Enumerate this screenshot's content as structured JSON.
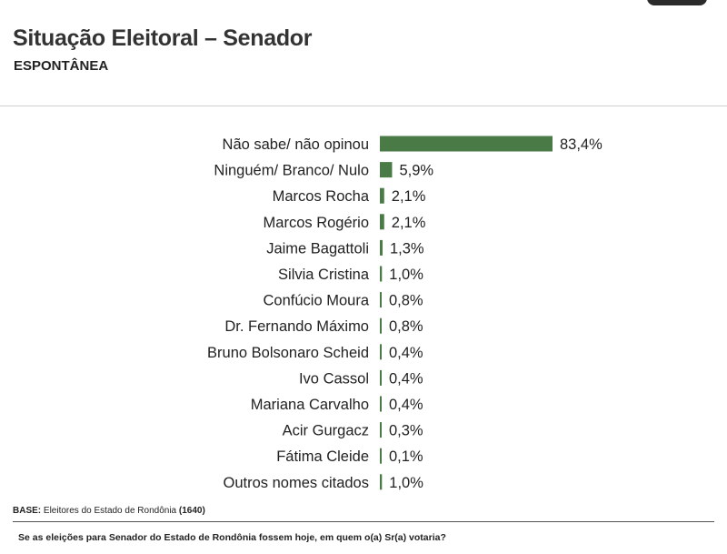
{
  "header": {
    "title": "Situação Eleitoral – Senador",
    "subtitle": "ESPONTÂNEA"
  },
  "footer": {
    "base_label": "BASE:",
    "base_text": " Eleitores do Estado de Rondônia ",
    "base_count": "(1640)",
    "question": "Se as eleições para Senador do Estado de Rondônia fossem hoje, em quem o(a) Sr(a) votaria?"
  },
  "colors": {
    "bar": "#4a7a45",
    "bar_dark": "#2f5a2c"
  },
  "chart_data": {
    "type": "bar",
    "orientation": "horizontal",
    "title": "Situação Eleitoral – Senador",
    "subtitle": "ESPONTÂNEA",
    "categories": [
      "Não sabe/ não opinou",
      "Ninguém/ Branco/ Nulo",
      "Marcos Rocha",
      "Marcos Rogério",
      "Jaime Bagattoli",
      "Silvia Cristina",
      "Confúcio Moura",
      "Dr. Fernando Máximo",
      "Bruno Bolsonaro Scheid",
      "Ivo Cassol",
      "Mariana Carvalho",
      "Acir Gurgacz",
      "Fátima Cleide",
      "Outros nomes citados"
    ],
    "values": [
      83.4,
      5.9,
      2.1,
      2.1,
      1.3,
      1.0,
      0.8,
      0.8,
      0.4,
      0.4,
      0.4,
      0.3,
      0.1,
      1.0
    ],
    "value_labels": [
      "83,4%",
      "5,9%",
      "2,1%",
      "2,1%",
      "1,3%",
      "1,0%",
      "0,8%",
      "0,8%",
      "0,4%",
      "0,4%",
      "0,4%",
      "0,3%",
      "0,1%",
      "1,0%"
    ],
    "unit": "%",
    "xlim": [
      0,
      83.4
    ],
    "grid": false,
    "legend": "none"
  }
}
